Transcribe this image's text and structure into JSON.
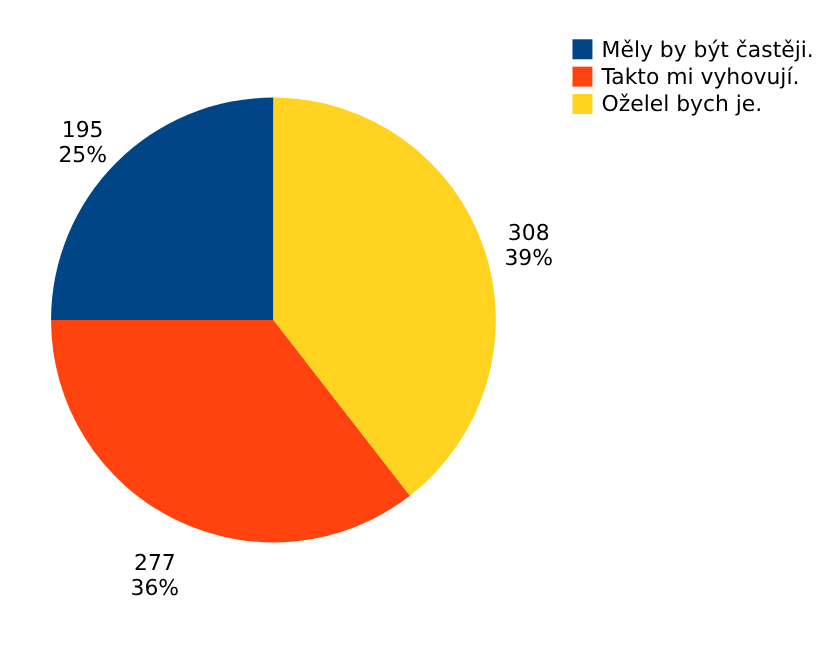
{
  "chart_data": {
    "type": "pie",
    "categories": [
      "Měly by být častěji.",
      "Takto mi vyhovují.",
      "Oželel bych je."
    ],
    "values": [
      195,
      277,
      308
    ],
    "colors": [
      "#004586",
      "#ff420e",
      "#ffd320"
    ],
    "value_labels": [
      "195\n25%",
      "277\n36%",
      "308\n39%"
    ],
    "legend": "right"
  }
}
